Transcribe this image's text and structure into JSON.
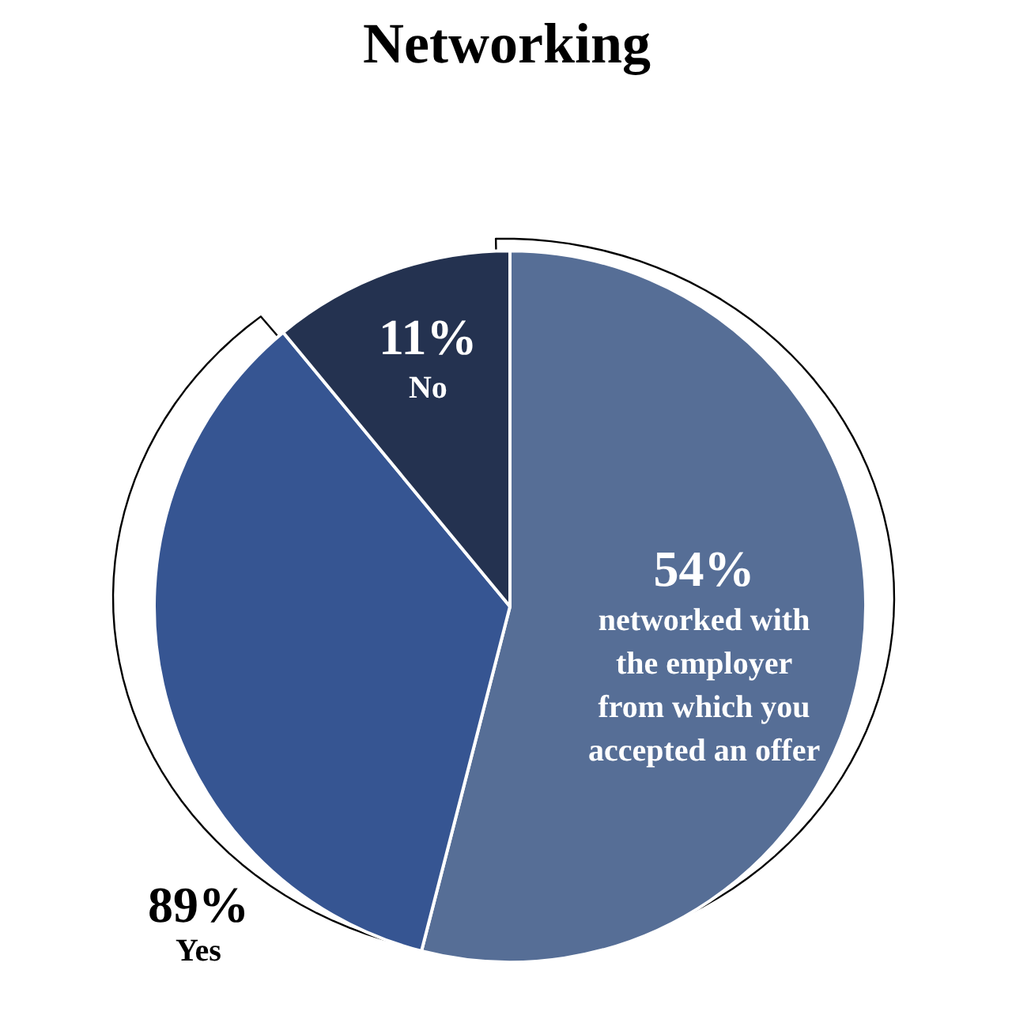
{
  "chart_data": {
    "type": "pie",
    "title": "Networking",
    "categories": [
      "networked with\nthe employer\nfrom which you\naccepted an offer",
      null,
      "No"
    ],
    "values": [
      54,
      35,
      11
    ],
    "colors": [
      "#566e96",
      "#365592",
      "#243250"
    ],
    "value_labels": [
      "54%",
      null,
      "11%"
    ],
    "annotations": [
      "89%\nYes"
    ]
  }
}
